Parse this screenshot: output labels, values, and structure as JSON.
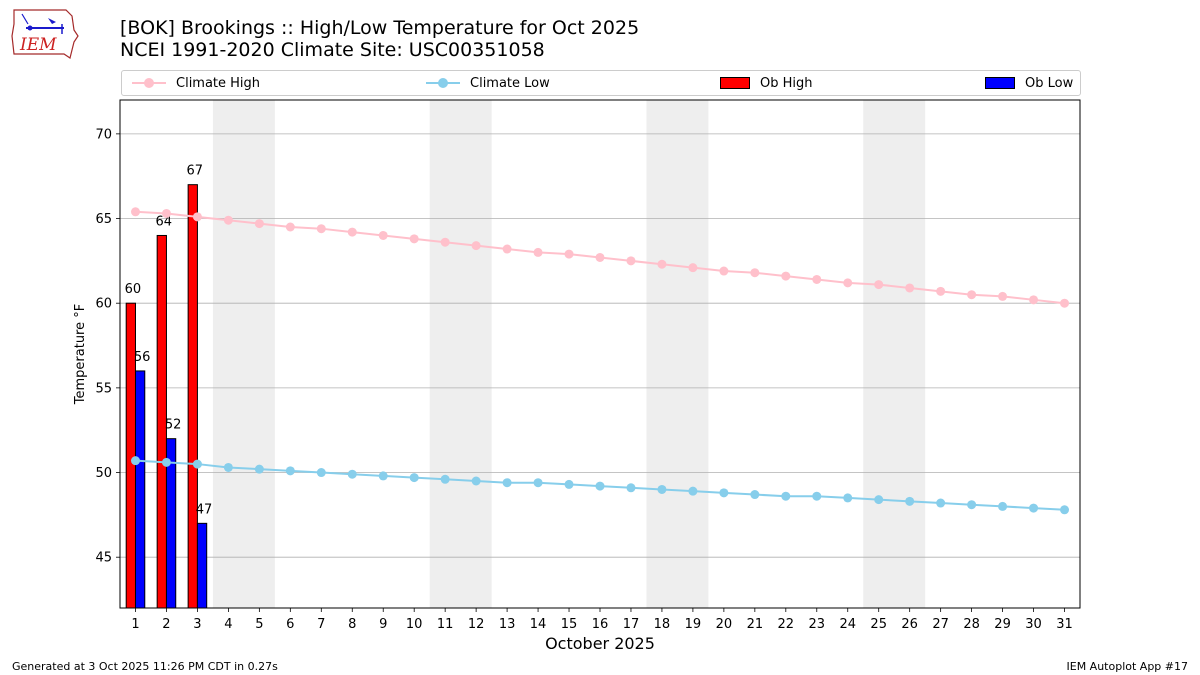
{
  "header": {
    "logo_text": "IEM",
    "title_line1": "[BOK] Brookings :: High/Low Temperature for Oct 2025",
    "title_line2": "NCEI 1991-2020 Climate Site: USC00351058"
  },
  "legend": {
    "climate_high": "Climate High",
    "climate_low": "Climate Low",
    "ob_high": "Ob High",
    "ob_low": "Ob Low"
  },
  "colors": {
    "climate_high": "#ffc0cb",
    "climate_low": "#87ceeb",
    "ob_high": "#ff0000",
    "ob_low": "#0000ff",
    "weekend_shade": "#eeeeee",
    "grid": "#b0b0b0"
  },
  "chart_data": {
    "type": "bar",
    "xlabel": "October 2025",
    "ylabel": "Temperature °F",
    "ylim": [
      42,
      72
    ],
    "yticks": [
      45,
      50,
      55,
      60,
      65,
      70
    ],
    "xlim": [
      0.5,
      31.5
    ],
    "x": [
      1,
      2,
      3,
      4,
      5,
      6,
      7,
      8,
      9,
      10,
      11,
      12,
      13,
      14,
      15,
      16,
      17,
      18,
      19,
      20,
      21,
      22,
      23,
      24,
      25,
      26,
      27,
      28,
      29,
      30,
      31
    ],
    "grid": "horizontal",
    "legend_position": "top",
    "weekend_shading": [
      [
        4,
        5
      ],
      [
        11,
        12
      ],
      [
        18,
        19
      ],
      [
        25,
        26
      ]
    ],
    "series": [
      {
        "name": "Climate High",
        "type": "line",
        "values": [
          65.4,
          65.3,
          65.1,
          64.9,
          64.7,
          64.5,
          64.4,
          64.2,
          64.0,
          63.8,
          63.6,
          63.4,
          63.2,
          63.0,
          62.9,
          62.7,
          62.5,
          62.3,
          62.1,
          61.9,
          61.8,
          61.6,
          61.4,
          61.2,
          61.1,
          60.9,
          60.7,
          60.5,
          60.4,
          60.2,
          60.0
        ]
      },
      {
        "name": "Climate Low",
        "type": "line",
        "values": [
          50.7,
          50.6,
          50.5,
          50.3,
          50.2,
          50.1,
          50.0,
          49.9,
          49.8,
          49.7,
          49.6,
          49.5,
          49.4,
          49.4,
          49.3,
          49.2,
          49.1,
          49.0,
          48.9,
          48.8,
          48.7,
          48.6,
          48.6,
          48.5,
          48.4,
          48.3,
          48.2,
          48.1,
          48.0,
          47.9,
          47.8
        ]
      },
      {
        "name": "Ob High",
        "type": "bar",
        "x": [
          1,
          2,
          3
        ],
        "values": [
          60,
          64,
          67
        ]
      },
      {
        "name": "Ob Low",
        "type": "bar",
        "x": [
          1,
          2,
          3
        ],
        "values": [
          56,
          52,
          47
        ]
      }
    ]
  },
  "footer": {
    "left": "Generated at 3 Oct 2025 11:26 PM CDT in 0.27s",
    "right": "IEM Autoplot App #17"
  }
}
